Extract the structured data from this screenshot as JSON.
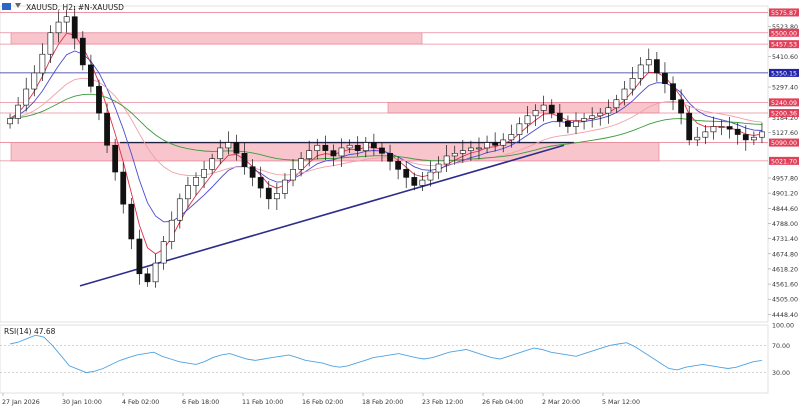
{
  "header": {
    "symbol_label": "XAUUSD, H2:  #N-XAUUSD"
  },
  "rsi_label": "RSI(14) 47.68",
  "colors": {
    "zone_fill": "#f7bcc4",
    "zone_edge": "#e0607a",
    "level_red": "#e8899a",
    "level_blue": "#2a2a9a",
    "trendline": "#2c2c8c",
    "candle": "#111111",
    "ema_red": "#e0304a",
    "ema_blue": "#4a4ad0",
    "ema_pink": "#f0a0a8",
    "ema_green": "#3c9a3c",
    "rsi_line": "#4fa3e0",
    "price_tag_red": "#e0405a",
    "price_tag_blue": "#2222aa"
  },
  "chart_data": {
    "type": "candlestick",
    "symbol": "XAUUSD",
    "timeframe": "H2",
    "y_range": [
      4420,
      5600
    ],
    "y_ticks": [
      "5523.80",
      "5410.60",
      "5297.40",
      "5184.20",
      "5127.60",
      "4957.80",
      "4901.20",
      "4844.60",
      "4788.00",
      "4731.40",
      "4674.80",
      "4618.20",
      "4561.60",
      "4505.00",
      "4448.40"
    ],
    "x_tick_labels": [
      "27 Jan 2026",
      "30 Jan 10:00",
      "4 Feb 02:00",
      "6 Feb 18:00",
      "11 Feb 10:00",
      "16 Feb 02:00",
      "18 Feb 20:00",
      "23 Feb 12:00",
      "26 Feb 04:00",
      "2 Mar 20:00",
      "5 Mar 12:00"
    ],
    "price_tags": [
      {
        "label": "5575.87",
        "price": 5575.87,
        "kind": "red"
      },
      {
        "label": "5500.00",
        "price": 5500.0,
        "kind": "red"
      },
      {
        "label": "5457.53",
        "price": 5457.53,
        "kind": "red"
      },
      {
        "label": "5350.15",
        "price": 5350.15,
        "kind": "blue"
      },
      {
        "label": "5240.09",
        "price": 5240.09,
        "kind": "red"
      },
      {
        "label": "5200.36",
        "price": 5200.36,
        "kind": "red"
      },
      {
        "label": "5090.00",
        "price": 5090.0,
        "kind": "red"
      },
      {
        "label": "5021.70",
        "price": 5021.7,
        "kind": "red"
      }
    ],
    "zones": [
      {
        "from": 5457.53,
        "to": 5500.0,
        "start_label": "27 Jan 2026",
        "end_label": "23 Feb 12:00"
      },
      {
        "from": 5200.36,
        "to": 5240.09,
        "start_label": "23 Feb 12:00",
        "end_label": "5 Mar 12:00"
      },
      {
        "from": 5021.7,
        "to": 5090.0,
        "start_label": "27 Jan 2026",
        "end_label": "5 Mar 12:00"
      }
    ],
    "trendline": {
      "start": {
        "date": "30 Jan 10:00",
        "price": 4555
      },
      "end": {
        "date": "2 Mar 20:00",
        "price": 5080
      }
    },
    "support_line": {
      "price": 5090,
      "start_label": "4 Feb 02:00",
      "end_label": "2 Mar 20:00"
    },
    "closes": [
      5180,
      5230,
      5290,
      5350,
      5420,
      5500,
      5540,
      5560,
      5480,
      5380,
      5300,
      5200,
      5080,
      4980,
      4860,
      4730,
      4600,
      4570,
      4640,
      4720,
      4800,
      4880,
      4930,
      4960,
      4990,
      5030,
      5070,
      5090,
      5050,
      5000,
      4960,
      4920,
      4880,
      4900,
      4950,
      4990,
      5030,
      5060,
      5080,
      5060,
      5040,
      5070,
      5080,
      5060,
      5090,
      5070,
      5050,
      5020,
      4990,
      4960,
      4930,
      4950,
      4980,
      5010,
      5040,
      5050,
      5060,
      5070,
      5070,
      5090,
      5080,
      5100,
      5120,
      5160,
      5190,
      5210,
      5230,
      5200,
      5170,
      5150,
      5170,
      5180,
      5190,
      5200,
      5220,
      5250,
      5290,
      5330,
      5380,
      5400,
      5350,
      5310,
      5250,
      5200,
      5100,
      5110,
      5130,
      5150,
      5150,
      5140,
      5120,
      5100,
      5110,
      5130
    ],
    "rsi": {
      "period": 14,
      "value": 47.68,
      "range": [
        0,
        100
      ],
      "ticks": [
        "100.00",
        "70.00",
        "30.00"
      ],
      "values": [
        72,
        75,
        80,
        85,
        82,
        70,
        55,
        40,
        35,
        30,
        32,
        36,
        42,
        48,
        52,
        56,
        58,
        60,
        54,
        50,
        46,
        44,
        42,
        46,
        52,
        56,
        58,
        54,
        50,
        48,
        50,
        52,
        54,
        56,
        52,
        48,
        46,
        44,
        40,
        38,
        40,
        44,
        48,
        52,
        54,
        56,
        58,
        55,
        52,
        50,
        52,
        56,
        60,
        62,
        64,
        60,
        56,
        52,
        50,
        54,
        58,
        62,
        66,
        64,
        60,
        58,
        56,
        54,
        58,
        62,
        66,
        70,
        72,
        74,
        68,
        60,
        52,
        44,
        36,
        34,
        38,
        40,
        42,
        40,
        38,
        36,
        38,
        42,
        46,
        48
      ]
    }
  }
}
